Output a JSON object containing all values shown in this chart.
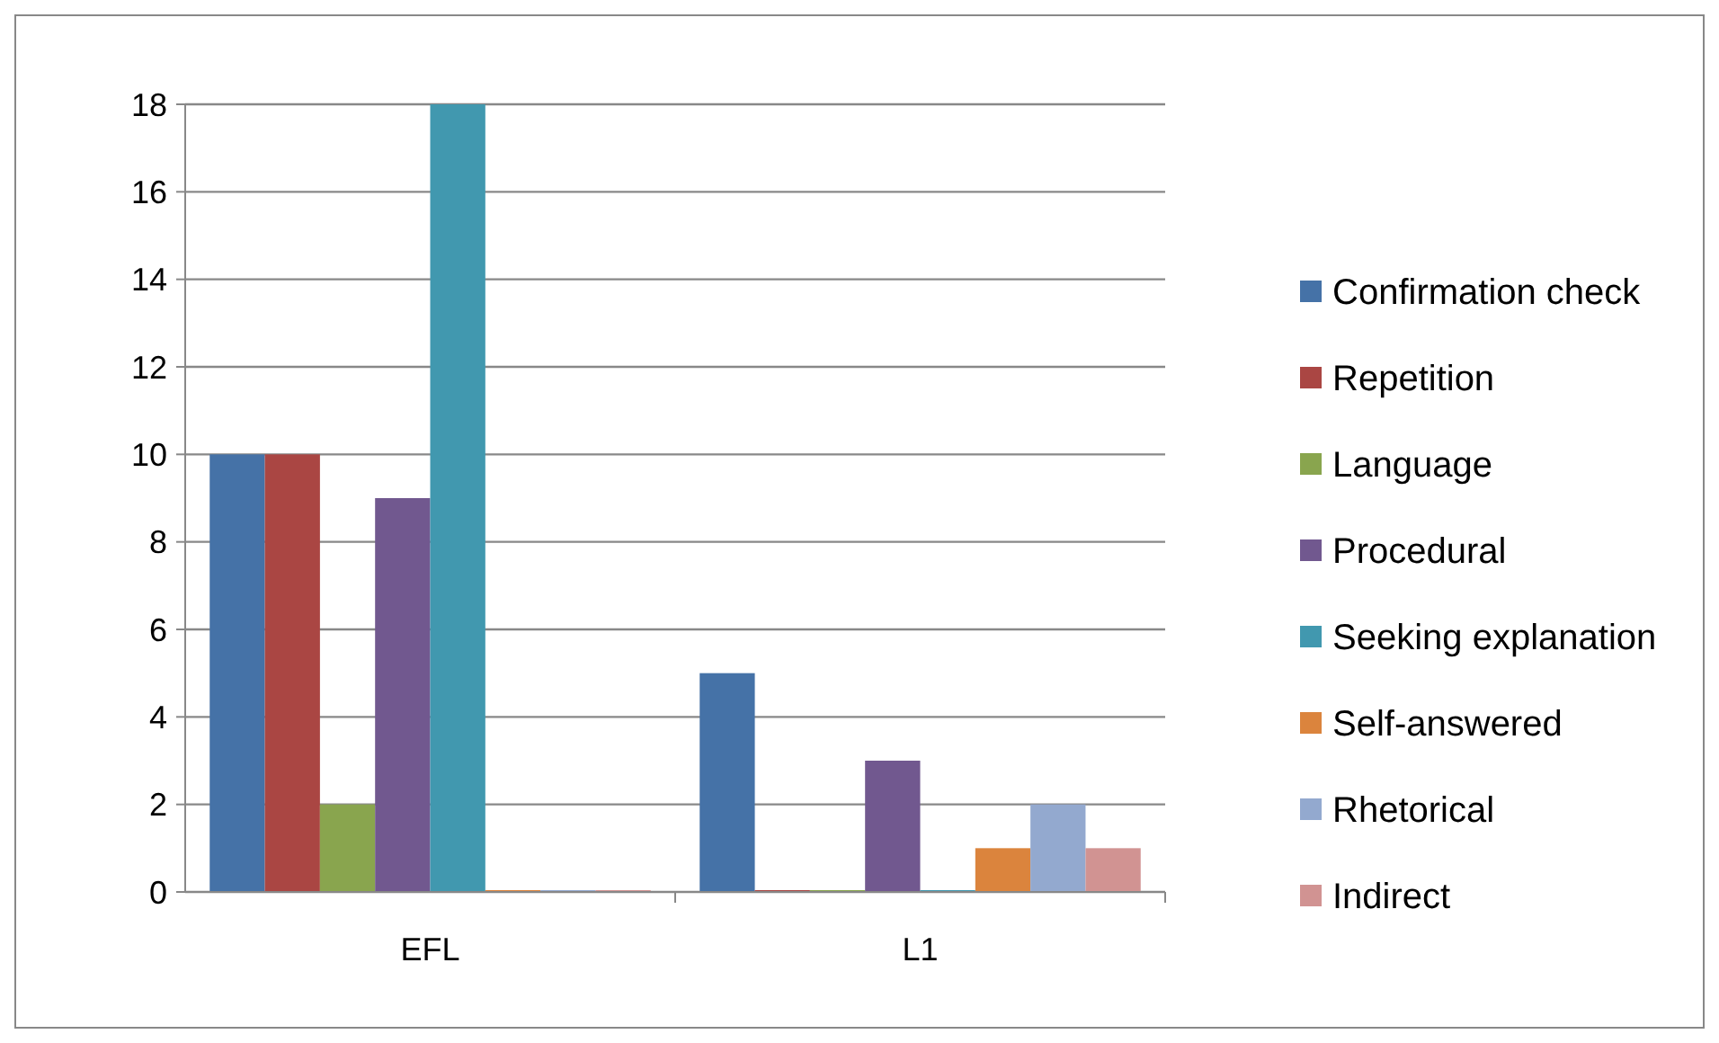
{
  "chart_data": {
    "type": "bar",
    "categories": [
      "EFL",
      "L1"
    ],
    "series": [
      {
        "name": "Confirmation check",
        "color": "#4572a7",
        "values": [
          10,
          5
        ]
      },
      {
        "name": "Repetition",
        "color": "#aa4643",
        "values": [
          10,
          0
        ]
      },
      {
        "name": "Language",
        "color": "#89a54e",
        "values": [
          2,
          0
        ]
      },
      {
        "name": "Procedural",
        "color": "#71588f",
        "values": [
          9,
          3
        ]
      },
      {
        "name": "Seeking explanation",
        "color": "#4198af",
        "values": [
          18,
          0
        ]
      },
      {
        "name": "Self-answered",
        "color": "#db843d",
        "values": [
          0,
          1
        ]
      },
      {
        "name": "Rhetorical",
        "color": "#93a9cf",
        "values": [
          0,
          2
        ]
      },
      {
        "name": "Indirect",
        "color": "#d19392",
        "values": [
          0,
          1
        ]
      }
    ],
    "ylim": [
      0,
      18
    ],
    "yticks": [
      0,
      2,
      4,
      6,
      8,
      10,
      12,
      14,
      16,
      18
    ],
    "grid": "y",
    "legend": "right"
  }
}
